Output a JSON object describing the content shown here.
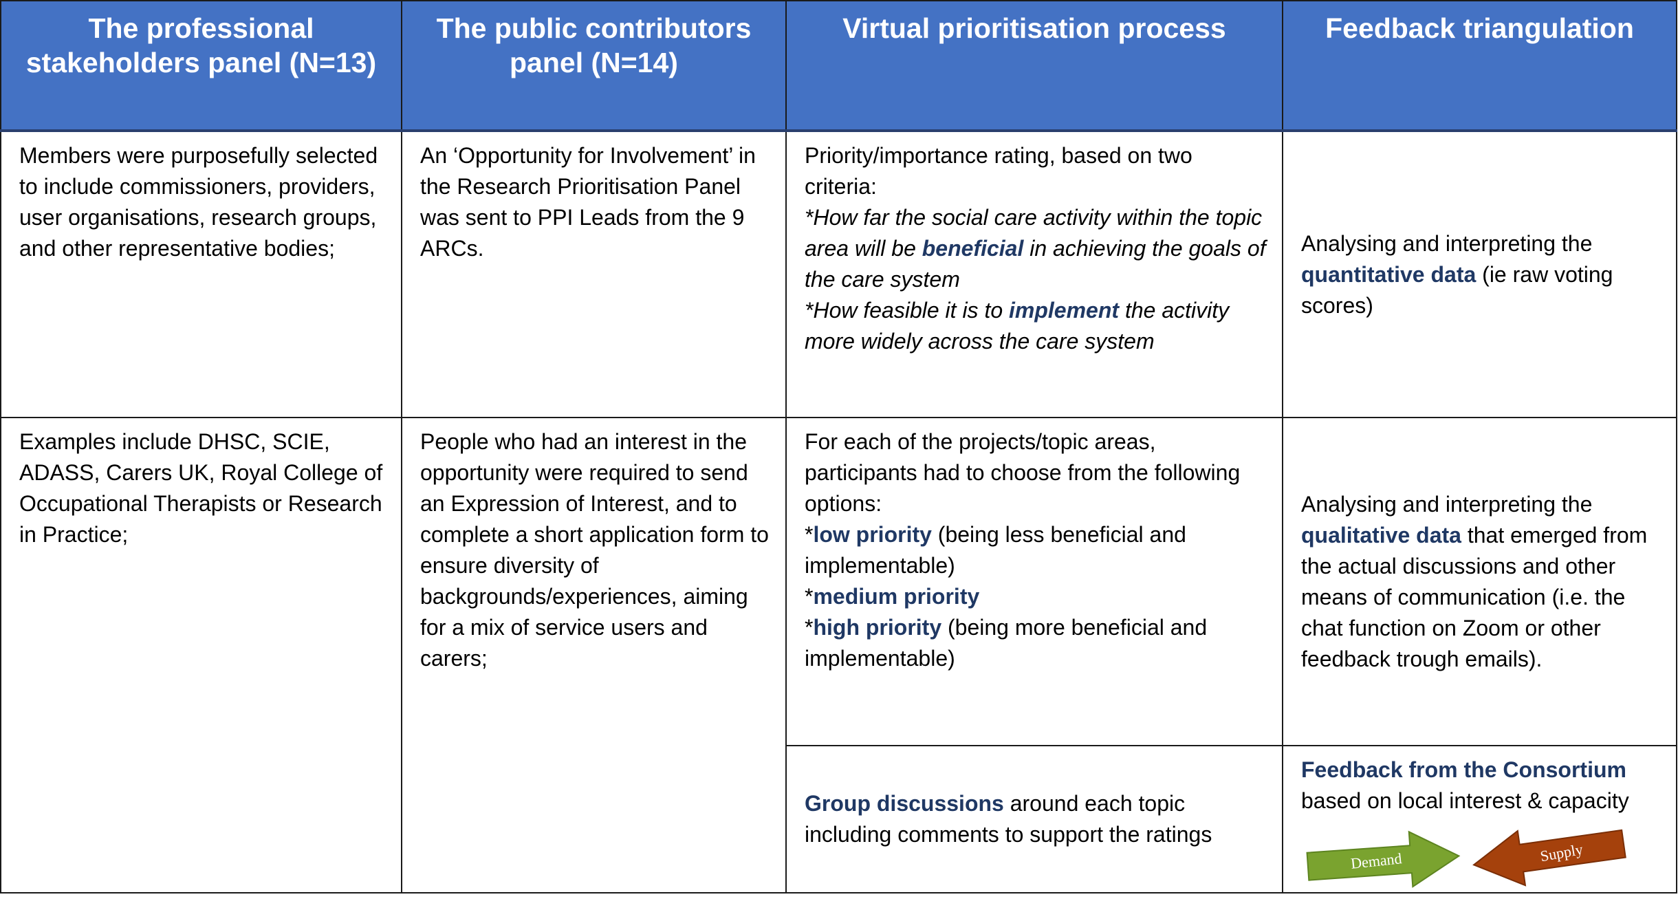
{
  "table": {
    "header": [
      "The professional stakeholders panel (N=13)",
      "The public contributors panel (N=14)",
      "Virtual prioritisation process",
      "Feedback triangulation"
    ],
    "rows": [
      [
        [
          [
            {
              "text": "Members were purposefully selected to include commissioners, providers, user organisations, research groups, and other representative bodies;"
            }
          ]
        ],
        [
          [
            {
              "text": "An ‘Opportunity for Involvement’ in the Research Prioritisation Panel was sent to PPI Leads from the 9 ARCs."
            }
          ]
        ],
        [
          [
            {
              "text": "Priority/importance rating, based on two criteria:"
            }
          ],
          [
            {
              "text": "*How far the social care activity within the topic area will be ",
              "italic": true
            },
            {
              "text": "beneficial",
              "bold": true,
              "italic": true
            },
            {
              "text": " in achieving the goals of the care system",
              "italic": true
            }
          ],
          [
            {
              "text": "*How feasible it is to ",
              "italic": true
            },
            {
              "text": "implement",
              "bold": true,
              "italic": true
            },
            {
              "text": " the activity more widely across the care system",
              "italic": true
            }
          ]
        ],
        [
          [
            {
              "text": "Analysing and interpreting the "
            },
            {
              "text": "quantitative data",
              "bold": true
            },
            {
              "text": " (ie raw voting scores)"
            }
          ]
        ]
      ],
      [
        [
          [
            {
              "text": "Examples include DHSC, SCIE, ADASS, Carers UK, Royal College of Occupational Therapists or Research in Practice;"
            }
          ]
        ],
        [
          [
            {
              "text": "People who had an interest in the opportunity were required to send an Expression of Interest, and to complete a short application form to ensure diversity of backgrounds/experiences, aiming for a mix of service users and carers;"
            }
          ]
        ],
        [
          [
            {
              "text": "For each of the projects/topic areas, participants had to choose from the following options:"
            }
          ],
          [
            {
              "text": "*"
            },
            {
              "text": "low priority",
              "bold": true
            },
            {
              "text": " (being less beneficial and implementable)"
            }
          ],
          [
            {
              "text": "*"
            },
            {
              "text": "medium priority",
              "bold": true
            }
          ],
          [
            {
              "text": "*"
            },
            {
              "text": "high priority",
              "bold": true
            },
            {
              "text": " (being more beneficial and implementable)"
            }
          ]
        ],
        [
          [
            {
              "text": "Analysing and interpreting the "
            },
            {
              "text": "qualitative data",
              "bold": true
            },
            {
              "text": " that emerged from the actual discussions and other means of communication (i.e. the chat function on Zoom or other feedback trough emails)."
            }
          ]
        ]
      ],
      [
        [
          [
            {
              "text": "Group discussions",
              "bold": true
            },
            {
              "text": " around each topic including comments to support the ratings"
            }
          ]
        ],
        [
          [
            {
              "text": "Feedback from the Consortium",
              "bold": true
            }
          ],
          [
            {
              "text": "based on local interest & capacity"
            }
          ]
        ]
      ]
    ],
    "arrows": [
      "Demand",
      "Supply"
    ]
  }
}
